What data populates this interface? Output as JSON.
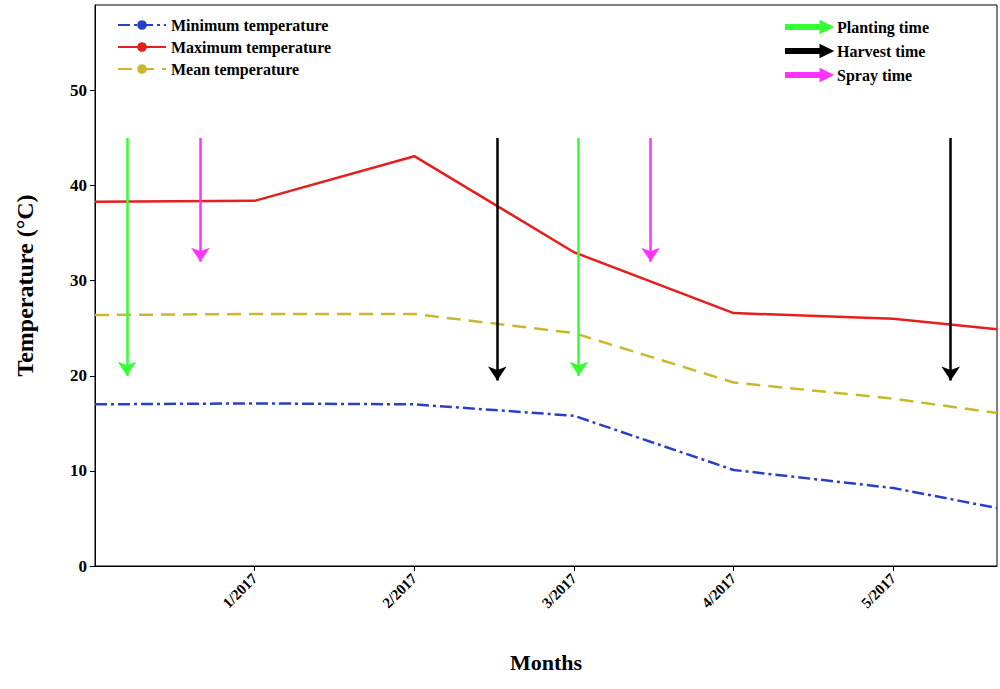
{
  "chart_data": {
    "type": "line",
    "x_label": "Months",
    "y_label": "Temperature (°C)",
    "x": [
      0,
      1,
      2,
      3,
      4,
      5,
      5.65
    ],
    "xlim": [
      0,
      5.65
    ],
    "xticks": [
      {
        "value": 1,
        "label": "1/2017"
      },
      {
        "value": 2,
        "label": "2/2017"
      },
      {
        "value": 3,
        "label": "3/2017"
      },
      {
        "value": 4,
        "label": "4/2017"
      },
      {
        "value": 5,
        "label": "5/2017"
      }
    ],
    "ylim": [
      0,
      59
    ],
    "yticks": [
      0,
      10,
      20,
      30,
      40,
      50
    ],
    "grid": false,
    "series": [
      {
        "name": "Minimum temperature",
        "color": "#2a3fc4",
        "line_style": "dashdot",
        "values": [
          17.0,
          17.1,
          17.0,
          15.8,
          10.1,
          8.2,
          6.1
        ]
      },
      {
        "name": "Maximum temperature",
        "color": "#e51e1e",
        "line_style": "solid",
        "values": [
          38.3,
          38.4,
          43.1,
          33.0,
          26.6,
          26.0,
          24.9
        ]
      },
      {
        "name": "Mean temperature",
        "color": "#c9b82e",
        "line_style": "dashed",
        "values": [
          26.4,
          26.5,
          26.5,
          24.5,
          19.3,
          17.6,
          16.1
        ]
      }
    ],
    "events": [
      {
        "name": "Planting time",
        "color": "#33ff33",
        "arrows": [
          {
            "x": 0.2,
            "from": 45,
            "to": 20
          },
          {
            "x": 3.03,
            "from": 45,
            "to": 20
          }
        ]
      },
      {
        "name": "Harvest time",
        "color": "#000000",
        "arrows": [
          {
            "x": 2.52,
            "from": 45,
            "to": 19.5
          },
          {
            "x": 5.36,
            "from": 45,
            "to": 19.5
          }
        ]
      },
      {
        "name": "Spray time",
        "color": "#ff33ff",
        "arrows": [
          {
            "x": 0.66,
            "from": 45,
            "to": 32
          },
          {
            "x": 3.48,
            "from": 45,
            "to": 32
          }
        ]
      }
    ]
  }
}
